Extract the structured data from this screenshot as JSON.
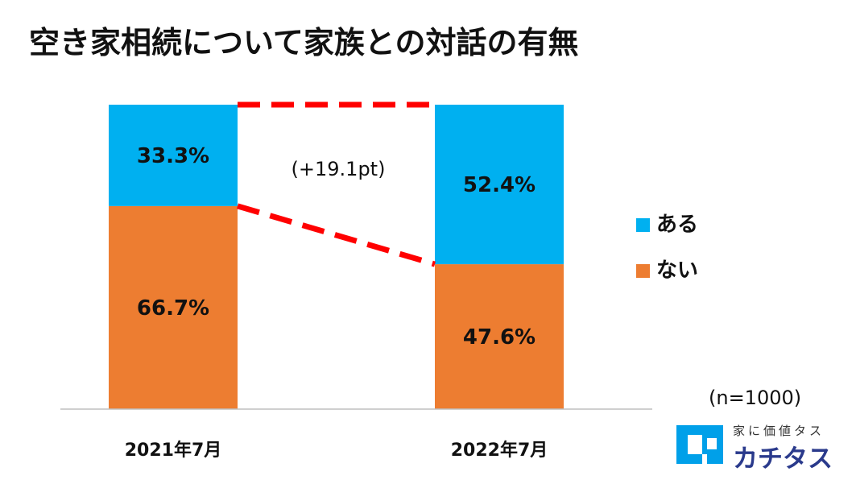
{
  "title": "空き家相続について家族との対話の有無",
  "chart_data": {
    "type": "bar",
    "stacked": true,
    "percent": true,
    "categories": [
      "2021年7月",
      "2022年7月"
    ],
    "series": [
      {
        "name": "ない",
        "values": [
          66.7,
          47.6
        ],
        "labels": [
          "66.7%",
          "47.6%"
        ],
        "color": "#ED7D31"
      },
      {
        "name": "ある",
        "values": [
          33.3,
          52.4
        ],
        "labels": [
          "33.3%",
          "52.4%"
        ],
        "color": "#00B0F0"
      }
    ],
    "ylim": [
      0,
      100
    ],
    "annotation": "(+19.1pt)",
    "legend": [
      {
        "label": "ある",
        "color": "#00B0F0"
      },
      {
        "label": "ない",
        "color": "#ED7D31"
      }
    ],
    "connector_color": "#FF0000"
  },
  "note": "(n=1000)",
  "logo": {
    "sub": "家に価値タス",
    "main": "カチタス",
    "icon_color": "#00A0E9"
  }
}
